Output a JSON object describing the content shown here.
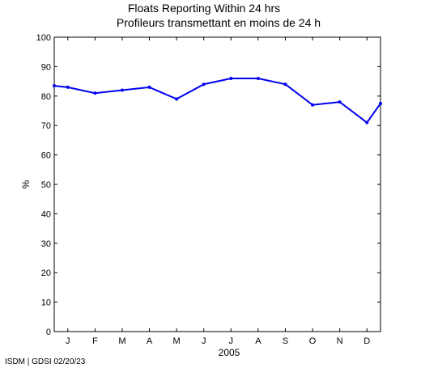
{
  "chart_data": {
    "type": "line",
    "title": "Floats Reporting Within 24 hrs",
    "subtitle": "Profileurs transmettant en moins de 24 h",
    "xlabel": "2005",
    "ylabel": "%",
    "categories": [
      "J",
      "F",
      "M",
      "A",
      "M",
      "J",
      "J",
      "A",
      "S",
      "O",
      "N",
      "D"
    ],
    "ylim": [
      0,
      100
    ],
    "yticks": [
      0,
      10,
      20,
      30,
      40,
      50,
      60,
      70,
      80,
      90,
      100
    ],
    "grid": false,
    "line_color": "#0000ee",
    "x": [
      -0.5,
      0,
      1,
      2,
      3,
      4,
      5,
      6,
      7,
      8,
      9,
      10,
      11,
      11.5
    ],
    "values": [
      83.5,
      83,
      81,
      82,
      83,
      79,
      84,
      86,
      86,
      84,
      77,
      78,
      71,
      77.5
    ]
  },
  "footer": "ISDM | GDSI 02/20/23"
}
